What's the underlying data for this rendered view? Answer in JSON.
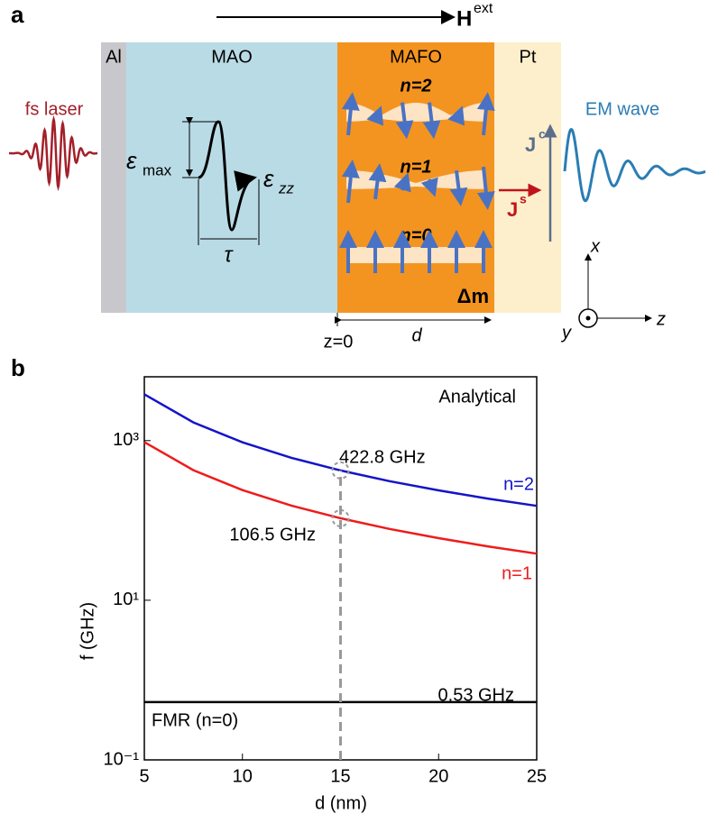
{
  "panel_a": {
    "label": "a",
    "field": "H",
    "field_sup": "ext",
    "layers": [
      "Al",
      "MAO",
      "MAFO",
      "Pt"
    ],
    "laser": "fs laser",
    "wave": "EM wave",
    "strain": "ε",
    "strain_max_sub": "max",
    "strain_zz_sub": "zz",
    "tau": "τ",
    "modes": [
      "n=2",
      "n=1",
      "n=0"
    ],
    "jc": "J",
    "jc_sup": "c",
    "js": "J",
    "js_sup": "s",
    "dm": "Δm",
    "z0": "z=0",
    "d": "d",
    "axis_x": "x",
    "axis_y": "y",
    "axis_z": "z"
  },
  "chart_data": {
    "type": "line",
    "panel_label": "b",
    "xlabel": "d (nm)",
    "ylabel": "f (GHz)",
    "log_y": true,
    "x": [
      5,
      7.5,
      10,
      12.5,
      15,
      17.5,
      20,
      22.5,
      25
    ],
    "series": [
      {
        "name": "n=2",
        "color": "#1414c8",
        "values": [
          3805.2,
          1691.2,
          951.3,
          608.8,
          422.8,
          310.6,
          237.8,
          187.9,
          152.2
        ]
      },
      {
        "name": "n=1",
        "color": "#ee1c1c",
        "values": [
          958.5,
          426.0,
          239.6,
          153.4,
          106.5,
          78.2,
          59.9,
          47.3,
          38.3
        ]
      },
      {
        "name": "FMR (n=0)",
        "color": "#000000",
        "values": [
          0.53,
          0.53,
          0.53,
          0.53,
          0.53,
          0.53,
          0.53,
          0.53,
          0.53
        ]
      }
    ],
    "annotations": [
      "Analytical",
      "422.8 GHz",
      "106.5 GHz",
      "0.53 GHz"
    ],
    "xlim": [
      5,
      25
    ],
    "xticks": [
      5,
      10,
      15,
      20,
      25
    ],
    "ylim": [
      0.1,
      6300
    ],
    "yticks": [
      {
        "value": 0.1,
        "label": "10⁻¹"
      },
      {
        "value": 10,
        "label": "10¹"
      },
      {
        "value": 1000,
        "label": "10³"
      }
    ]
  }
}
